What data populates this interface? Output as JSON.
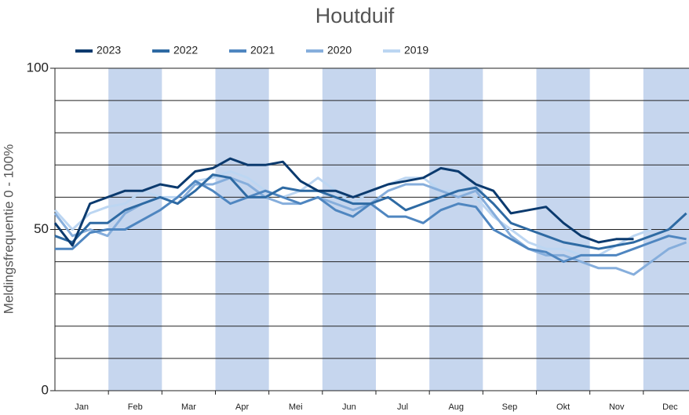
{
  "chart_data": {
    "type": "line",
    "title": "Houtduif",
    "y_label": "Meldingsfrequentie 0 - 100%",
    "months": [
      "Jan",
      "Feb",
      "Mar",
      "Apr",
      "Mei",
      "Jun",
      "Jul",
      "Aug",
      "Sep",
      "Okt",
      "Nov",
      "Dec"
    ],
    "shaded_months": [
      1,
      3,
      5,
      7,
      9,
      11
    ],
    "shade_color": "#c6d6ee",
    "xlim": [
      0,
      366
    ],
    "x": [
      0,
      10,
      20,
      30,
      40,
      50,
      60,
      70,
      80,
      90,
      100,
      110,
      120,
      130,
      140,
      150,
      160,
      170,
      180,
      190,
      200,
      210,
      220,
      230,
      240,
      250,
      260,
      270,
      280,
      290,
      300,
      310,
      320,
      330,
      340,
      350,
      360
    ],
    "ylim": [
      0,
      100
    ],
    "yticks": [
      0,
      50,
      100
    ],
    "ygrid": [
      10,
      20,
      30,
      40,
      50,
      60,
      70,
      80,
      90,
      100
    ],
    "grid": true,
    "series": [
      {
        "name": "2023",
        "color": "#0b3a6e",
        "values": [
          52,
          45,
          58,
          60,
          62,
          62,
          64,
          63,
          68,
          69,
          72,
          70,
          70,
          71,
          65,
          62,
          62,
          60,
          62,
          64,
          65,
          66,
          69,
          68,
          64,
          62,
          55,
          56,
          57,
          52,
          48,
          46,
          47,
          47,
          null,
          null,
          null
        ]
      },
      {
        "name": "2022",
        "color": "#2e6aa3",
        "values": [
          48,
          46,
          52,
          52,
          56,
          58,
          60,
          58,
          62,
          67,
          66,
          60,
          60,
          63,
          62,
          62,
          60,
          58,
          58,
          60,
          56,
          58,
          60,
          62,
          63,
          58,
          52,
          50,
          48,
          46,
          45,
          44,
          45,
          46,
          48,
          50,
          55
        ]
      },
      {
        "name": "2021",
        "color": "#4f86c0",
        "values": [
          44,
          44,
          49,
          50,
          50,
          53,
          56,
          60,
          65,
          62,
          58,
          60,
          62,
          60,
          58,
          60,
          56,
          54,
          58,
          54,
          54,
          52,
          56,
          58,
          57,
          50,
          47,
          44,
          43,
          40,
          42,
          42,
          42,
          44,
          46,
          48,
          47
        ]
      },
      {
        "name": "2020",
        "color": "#86aedc",
        "values": [
          55,
          48,
          50,
          48,
          55,
          58,
          60,
          58,
          64,
          64,
          66,
          64,
          60,
          58,
          58,
          60,
          58,
          56,
          58,
          62,
          64,
          64,
          62,
          60,
          62,
          55,
          48,
          44,
          42,
          42,
          40,
          38,
          38,
          36,
          40,
          44,
          46
        ]
      },
      {
        "name": "2019",
        "color": "#bcd6f2",
        "values": [
          56,
          50,
          55,
          57,
          58,
          62,
          60,
          60,
          65,
          66,
          68,
          66,
          62,
          60,
          62,
          66,
          62,
          58,
          62,
          64,
          66,
          66,
          62,
          62,
          60,
          54,
          50,
          46,
          44,
          44,
          42,
          42,
          45,
          48,
          50,
          null,
          null
        ]
      }
    ]
  }
}
